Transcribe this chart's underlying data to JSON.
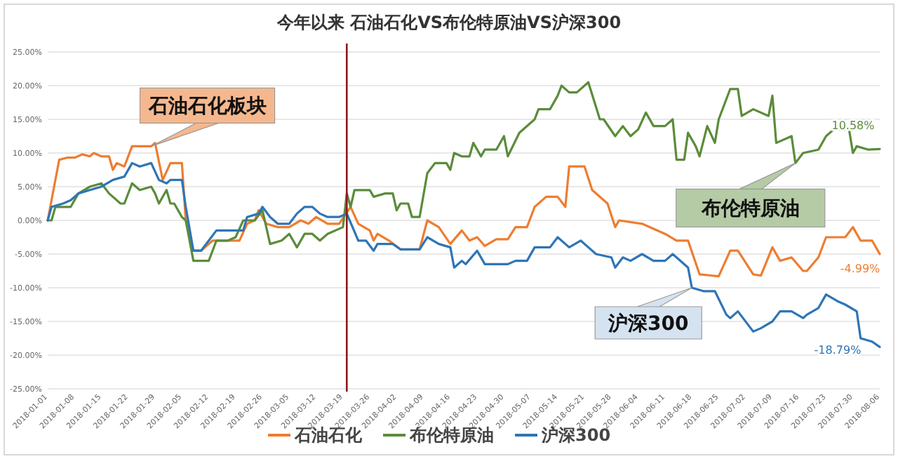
{
  "chart_data": {
    "type": "line",
    "title": "今年以来 石油石化VS布伦特原油VS沪深300",
    "xlim": [
      "2018-01-01",
      "2018-08-06"
    ],
    "xticks": [
      "2018-01-01",
      "2018-01-08",
      "2018-01-15",
      "2018-01-22",
      "2018-01-29",
      "2018-02-05",
      "2018-02-12",
      "2018-02-19",
      "2018-02-26",
      "2018-03-05",
      "2018-03-12",
      "2018-03-19",
      "2018-03-26",
      "2018-04-02",
      "2018-04-09",
      "2018-04-16",
      "2018-04-23",
      "2018-04-30",
      "2018-05-07",
      "2018-05-14",
      "2018-05-21",
      "2018-05-28",
      "2018-06-04",
      "2018-06-11",
      "2018-06-18",
      "2018-06-25",
      "2018-07-02",
      "2018-07-09",
      "2018-07-16",
      "2018-07-23",
      "2018-07-30",
      "2018-08-06"
    ],
    "ylim": [
      -25,
      25
    ],
    "yticks": [
      {
        "value": 25,
        "label": "25.00%"
      },
      {
        "value": 20,
        "label": "20.00%"
      },
      {
        "value": 15,
        "label": "15.00%"
      },
      {
        "value": 10,
        "label": "10.00%"
      },
      {
        "value": 5,
        "label": "5.00%"
      },
      {
        "value": 0,
        "label": "0.00%"
      },
      {
        "value": -5,
        "label": "-5.00%"
      },
      {
        "value": -10,
        "label": "-10.00%"
      },
      {
        "value": -15,
        "label": "-15.00%"
      },
      {
        "value": -20,
        "label": "-20.00%"
      },
      {
        "value": -25,
        "label": "-25.00%"
      }
    ],
    "grid": "y",
    "legend": "bottom",
    "marker": "none",
    "line_style": "solid",
    "ref_lines": [
      {
        "axis": "x",
        "value": "2018-03-20",
        "color": "#8b1a1a"
      }
    ],
    "series": [
      {
        "name": "石油石化",
        "color": "#ed7d31",
        "x": [
          "2018-01-01",
          "2018-01-02",
          "2018-01-04",
          "2018-01-06",
          "2018-01-08",
          "2018-01-10",
          "2018-01-12",
          "2018-01-13",
          "2018-01-15",
          "2018-01-17",
          "2018-01-18",
          "2018-01-19",
          "2018-01-21",
          "2018-01-23",
          "2018-01-28",
          "2018-01-29",
          "2018-01-31",
          "2018-02-02",
          "2018-02-05",
          "2018-02-06",
          "2018-02-08",
          "2018-02-10",
          "2018-02-13",
          "2018-02-20",
          "2018-02-22",
          "2018-02-24",
          "2018-02-25",
          "2018-02-27",
          "2018-03-02",
          "2018-03-05",
          "2018-03-08",
          "2018-03-10",
          "2018-03-12",
          "2018-03-15",
          "2018-03-18",
          "2018-03-21",
          "2018-03-23",
          "2018-03-26",
          "2018-03-27",
          "2018-03-28",
          "2018-03-31",
          "2018-04-03",
          "2018-04-08",
          "2018-04-10",
          "2018-04-13",
          "2018-04-16",
          "2018-04-19",
          "2018-04-21",
          "2018-04-23",
          "2018-04-25",
          "2018-04-28",
          "2018-05-01",
          "2018-05-03",
          "2018-05-06",
          "2018-05-08",
          "2018-05-11",
          "2018-05-14",
          "2018-05-16",
          "2018-05-17",
          "2018-05-21",
          "2018-05-23",
          "2018-05-27",
          "2018-05-29",
          "2018-05-30",
          "2018-06-05",
          "2018-06-11",
          "2018-06-14",
          "2018-06-17",
          "2018-06-20",
          "2018-06-25",
          "2018-06-28",
          "2018-06-30",
          "2018-07-04",
          "2018-07-06",
          "2018-07-09",
          "2018-07-11",
          "2018-07-14",
          "2018-07-17",
          "2018-07-18",
          "2018-07-21",
          "2018-07-23",
          "2018-07-28",
          "2018-07-30",
          "2018-08-01",
          "2018-08-04",
          "2018-08-06"
        ],
        "values": [
          0,
          3,
          9,
          9.3,
          9.3,
          9.8,
          9.5,
          10,
          9.5,
          9.5,
          7.5,
          8.5,
          8,
          11,
          11,
          11.5,
          6,
          8.5,
          8.5,
          0,
          -4.5,
          -4.5,
          -3,
          -3,
          -0.5,
          0,
          1.5,
          -0.5,
          -1,
          -1,
          0,
          -0.5,
          0.5,
          -0.5,
          -0.5,
          2,
          -0.5,
          -1.5,
          -3,
          -2,
          -3,
          -4.3,
          -4.3,
          0,
          -1,
          -3.5,
          -1.5,
          -3,
          -2.5,
          -3.8,
          -2.8,
          -2.8,
          -1,
          -1,
          2,
          3.5,
          3.5,
          2,
          8,
          8,
          4.5,
          2.5,
          -1,
          0,
          -0.5,
          -2,
          -3,
          -3,
          -8,
          -8.3,
          -4.5,
          -4.5,
          -8,
          -8.2,
          -4,
          -6,
          -5.5,
          -7.5,
          -7.5,
          -5.5,
          -2.5,
          -2.5,
          -1,
          -3,
          -3,
          -4.99
        ]
      },
      {
        "name": "布伦特原油",
        "color": "#5b8c3a",
        "x": [
          "2018-01-01",
          "2018-01-02",
          "2018-01-03",
          "2018-01-07",
          "2018-01-09",
          "2018-01-12",
          "2018-01-15",
          "2018-01-17",
          "2018-01-20",
          "2018-01-21",
          "2018-01-23",
          "2018-01-25",
          "2018-01-28",
          "2018-01-29",
          "2018-01-30",
          "2018-02-01",
          "2018-02-02",
          "2018-02-03",
          "2018-02-05",
          "2018-02-06",
          "2018-02-08",
          "2018-02-12",
          "2018-02-14",
          "2018-02-17",
          "2018-02-19",
          "2018-02-21",
          "2018-02-24",
          "2018-02-26",
          "2018-02-28",
          "2018-03-03",
          "2018-03-05",
          "2018-03-07",
          "2018-03-09",
          "2018-03-11",
          "2018-03-13",
          "2018-03-15",
          "2018-03-19",
          "2018-03-20",
          "2018-03-21",
          "2018-03-22",
          "2018-03-26",
          "2018-03-27",
          "2018-03-30",
          "2018-04-01",
          "2018-04-02",
          "2018-04-03",
          "2018-04-05",
          "2018-04-06",
          "2018-04-08",
          "2018-04-10",
          "2018-04-12",
          "2018-04-15",
          "2018-04-16",
          "2018-04-17",
          "2018-04-19",
          "2018-04-21",
          "2018-04-22",
          "2018-04-24",
          "2018-04-25",
          "2018-04-28",
          "2018-04-30",
          "2018-05-01",
          "2018-05-04",
          "2018-05-08",
          "2018-05-09",
          "2018-05-12",
          "2018-05-14",
          "2018-05-15",
          "2018-05-17",
          "2018-05-19",
          "2018-05-22",
          "2018-05-25",
          "2018-05-26",
          "2018-05-29",
          "2018-05-31",
          "2018-06-02",
          "2018-06-04",
          "2018-06-06",
          "2018-06-08",
          "2018-06-11",
          "2018-06-13",
          "2018-06-14",
          "2018-06-16",
          "2018-06-17",
          "2018-06-19",
          "2018-06-20",
          "2018-06-22",
          "2018-06-24",
          "2018-06-25",
          "2018-06-28",
          "2018-06-30",
          "2018-07-01",
          "2018-07-04",
          "2018-07-08",
          "2018-07-09",
          "2018-07-10",
          "2018-07-14",
          "2018-07-15",
          "2018-07-17",
          "2018-07-21",
          "2018-07-23",
          "2018-07-25",
          "2018-07-29",
          "2018-07-30",
          "2018-07-31",
          "2018-08-03",
          "2018-08-06"
        ],
        "values": [
          0,
          0,
          2,
          2,
          4,
          5,
          5.5,
          4,
          2.5,
          2.5,
          5.5,
          4.5,
          5,
          4,
          2.5,
          4.5,
          2.5,
          2.5,
          0.5,
          0,
          -6,
          -6,
          -3,
          -3,
          -2.5,
          0,
          0,
          1.5,
          -3.5,
          -3,
          -2,
          -4,
          -2,
          -2,
          -3,
          -2,
          -1,
          4,
          2,
          4.5,
          4.5,
          3.5,
          4,
          4,
          1.5,
          2.5,
          2.5,
          0.5,
          0.5,
          7,
          8.5,
          8.5,
          7.5,
          10,
          9.5,
          9.5,
          11.5,
          9.5,
          10.5,
          10.5,
          12.5,
          9.5,
          13,
          15,
          16.5,
          16.5,
          18.5,
          20,
          19,
          19,
          20.5,
          15,
          15,
          12.5,
          14,
          12.5,
          13.5,
          16,
          14,
          14,
          15,
          9,
          9,
          13,
          11,
          9.5,
          14,
          11.5,
          15,
          19.5,
          19.5,
          15.5,
          16.5,
          15.5,
          18.5,
          11.5,
          12.5,
          8.5,
          10,
          10.5,
          12.5,
          13.5,
          13.5,
          10,
          11,
          10.5,
          10.58
        ]
      },
      {
        "name": "沪深300",
        "color": "#2e75b6",
        "x": [
          "2018-01-01",
          "2018-01-02",
          "2018-01-05",
          "2018-01-07",
          "2018-01-09",
          "2018-01-12",
          "2018-01-15",
          "2018-01-18",
          "2018-01-21",
          "2018-01-23",
          "2018-01-25",
          "2018-01-28",
          "2018-01-30",
          "2018-02-01",
          "2018-02-02",
          "2018-02-05",
          "2018-02-06",
          "2018-02-08",
          "2018-02-10",
          "2018-02-14",
          "2018-02-21",
          "2018-02-22",
          "2018-02-25",
          "2018-02-26",
          "2018-02-28",
          "2018-03-02",
          "2018-03-05",
          "2018-03-07",
          "2018-03-09",
          "2018-03-11",
          "2018-03-13",
          "2018-03-15",
          "2018-03-18",
          "2018-03-20",
          "2018-03-23",
          "2018-03-25",
          "2018-03-27",
          "2018-03-28",
          "2018-04-01",
          "2018-04-03",
          "2018-04-08",
          "2018-04-10",
          "2018-04-13",
          "2018-04-16",
          "2018-04-17",
          "2018-04-19",
          "2018-04-20",
          "2018-04-23",
          "2018-04-25",
          "2018-05-01",
          "2018-05-03",
          "2018-05-06",
          "2018-05-08",
          "2018-05-12",
          "2018-05-14",
          "2018-05-17",
          "2018-05-20",
          "2018-05-22",
          "2018-05-24",
          "2018-05-28",
          "2018-05-29",
          "2018-05-31",
          "2018-06-02",
          "2018-06-05",
          "2018-06-08",
          "2018-06-11",
          "2018-06-13",
          "2018-06-17",
          "2018-06-18",
          "2018-06-21",
          "2018-06-24",
          "2018-06-27",
          "2018-06-28",
          "2018-06-30",
          "2018-07-04",
          "2018-07-06",
          "2018-07-09",
          "2018-07-11",
          "2018-07-14",
          "2018-07-17",
          "2018-07-18",
          "2018-07-21",
          "2018-07-23",
          "2018-07-26",
          "2018-07-28",
          "2018-07-31",
          "2018-08-01",
          "2018-08-04",
          "2018-08-06"
        ],
        "values": [
          0,
          2,
          2.5,
          3,
          4,
          4.5,
          5,
          6,
          6.5,
          8.5,
          8,
          8.5,
          6,
          5.5,
          6,
          6,
          2,
          -4.5,
          -4.5,
          -1.5,
          -1.5,
          0.5,
          1,
          2,
          0.5,
          -0.5,
          -0.5,
          1,
          2,
          2,
          1,
          0.5,
          0.5,
          1,
          -3,
          -3,
          -4.5,
          -3.5,
          -3.5,
          -4.3,
          -4.3,
          -2.5,
          -3.5,
          -4,
          -7,
          -6,
          -6.5,
          -4.5,
          -6.5,
          -6.5,
          -6,
          -6,
          -4,
          -4,
          -2.5,
          -4,
          -3,
          -4,
          -5,
          -5.5,
          -7,
          -5.5,
          -6,
          -5,
          -6,
          -6,
          -5,
          -7,
          -10,
          -10.5,
          -10.5,
          -14,
          -14.5,
          -13.5,
          -16.5,
          -16,
          -15,
          -13.5,
          -13.5,
          -14.5,
          -14,
          -13,
          -11,
          -12,
          -12.5,
          -13.5,
          -17.5,
          -18,
          -18.79
        ]
      }
    ],
    "annotations": [
      {
        "text": "石油石化板块",
        "x": "2018-01-28",
        "y": 11
      },
      {
        "text": "布伦特原油",
        "x": "2018-07-15",
        "y": 8.5
      },
      {
        "text": "沪深300",
        "x": "2018-06-18",
        "y": -10
      },
      {
        "text": "10.58%",
        "x": "2018-08-06",
        "y": 10.58
      },
      {
        "text": "-4.99%",
        "x": "2018-08-06",
        "y": -4.99
      },
      {
        "text": "-18.79%",
        "x": "2018-08-06",
        "y": -18.79
      }
    ]
  }
}
